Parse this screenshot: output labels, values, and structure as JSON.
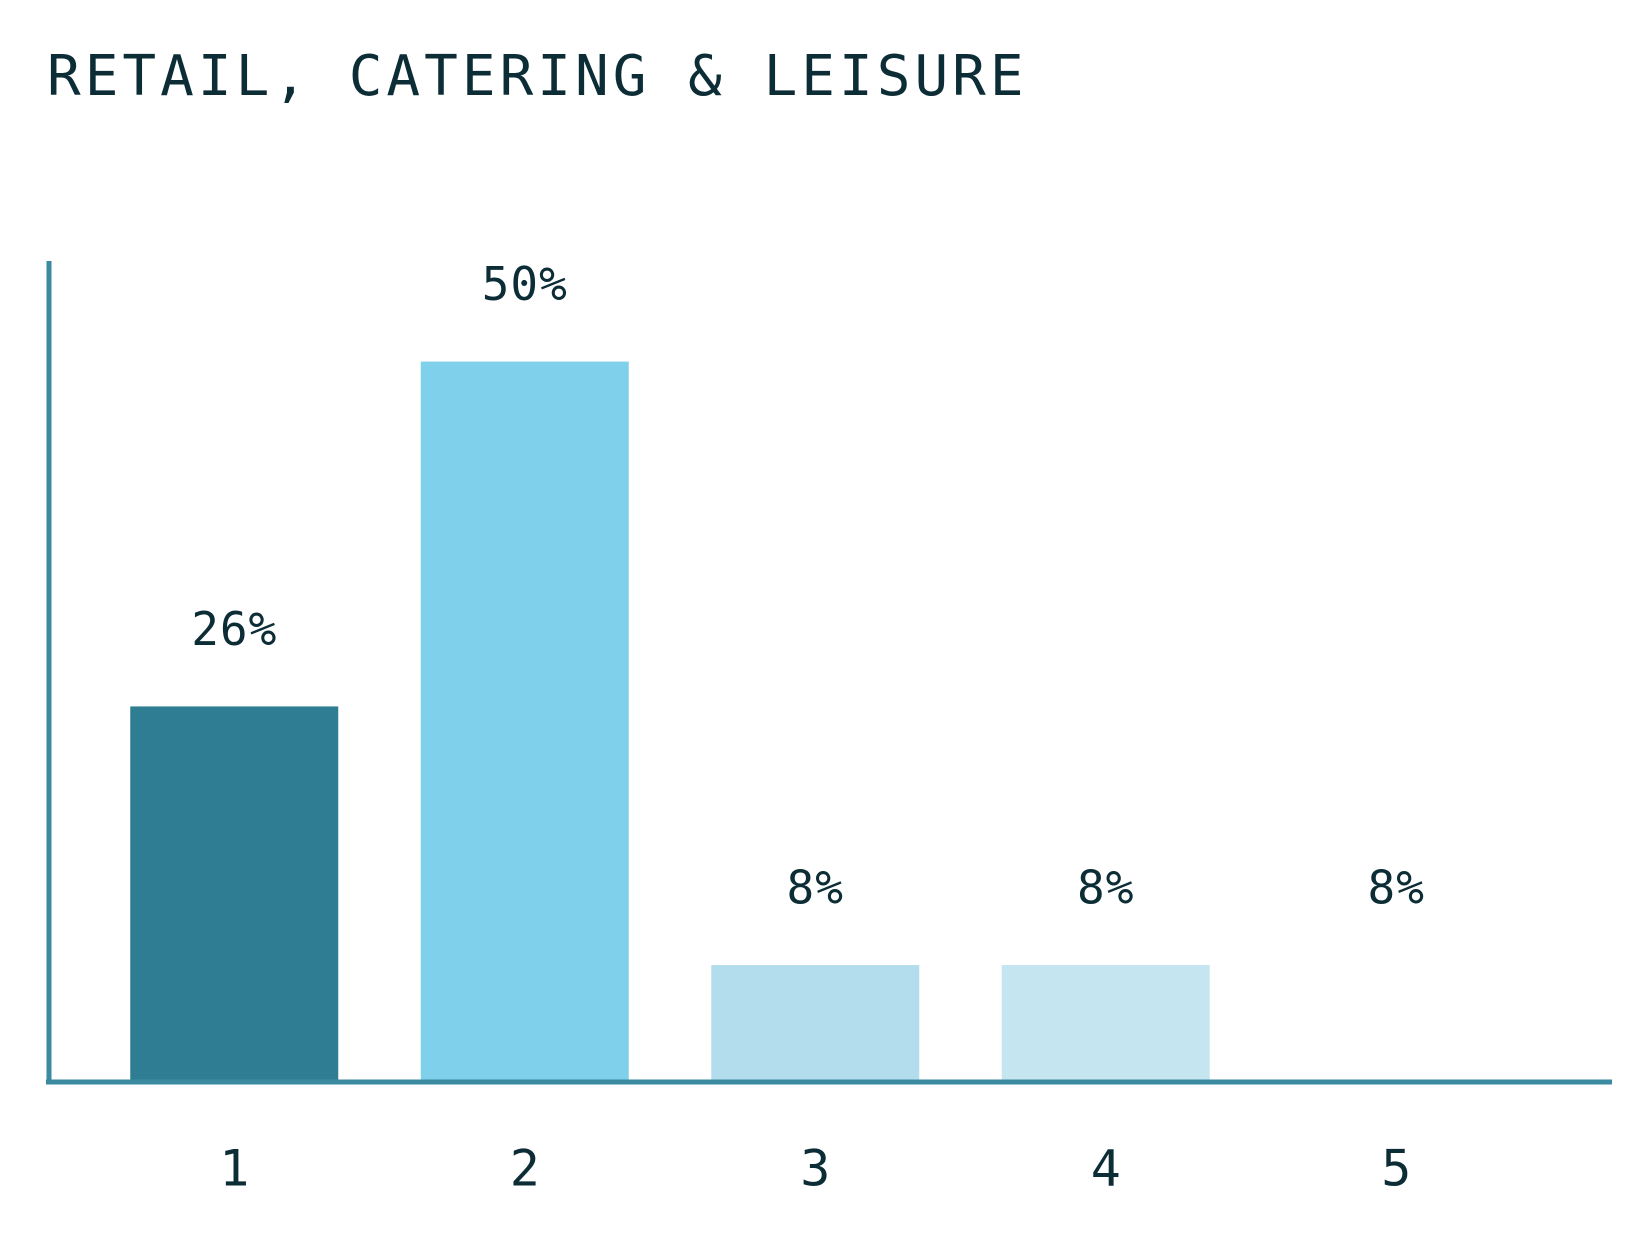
{
  "chart_data": {
    "type": "bar",
    "title": "RETAIL, CATERING & LEISURE",
    "categories": [
      "1",
      "2",
      "3",
      "4",
      "5"
    ],
    "values": [
      26,
      50,
      8,
      8,
      8
    ],
    "value_labels": [
      "26%",
      "50%",
      "8%",
      "8%",
      "8%"
    ],
    "colors": [
      "#2e7d93",
      "#7fd0ea",
      "#b3dded",
      "#c5e5f1",
      "#ffffff"
    ],
    "ylim": [
      0,
      57
    ]
  }
}
